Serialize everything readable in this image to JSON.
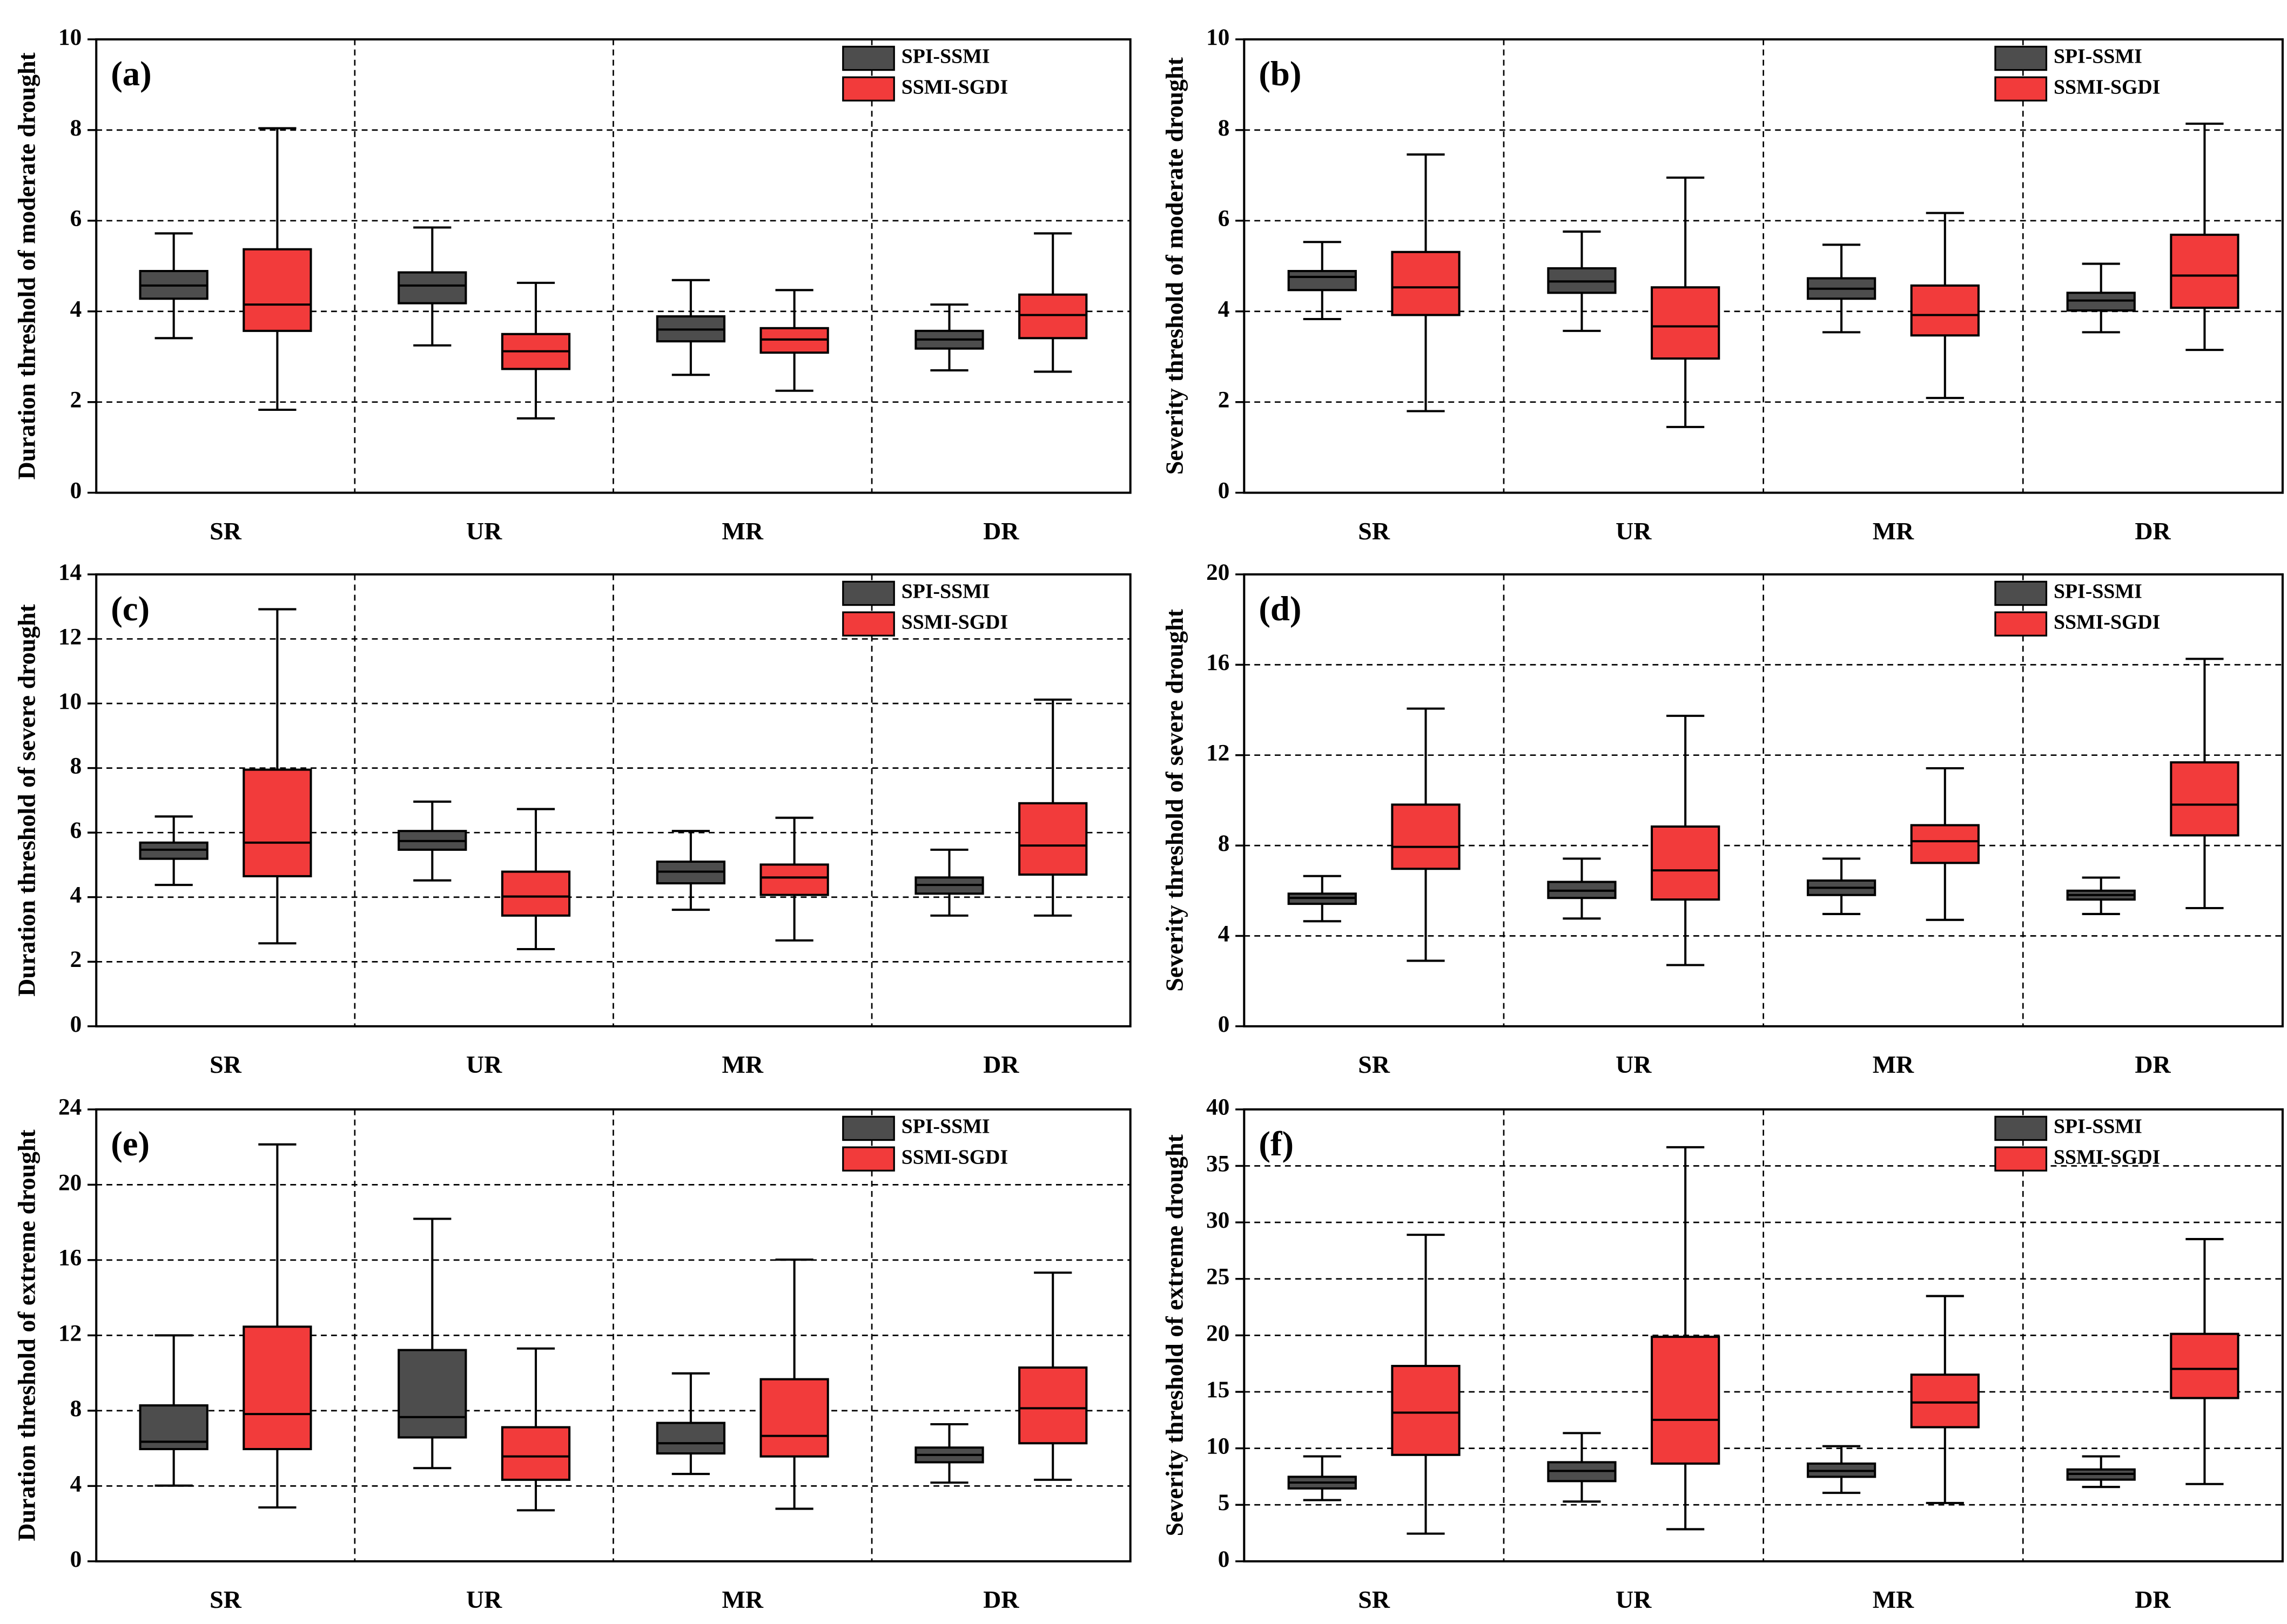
{
  "chart_data": [
    {
      "type": "box",
      "label": "(a)",
      "y_label": "Duration threshold of moderate drought",
      "categories": [
        "SR",
        "UR",
        "MR",
        "DR"
      ],
      "ylim": [
        0,
        10
      ],
      "yticks": [
        0,
        2,
        4,
        6,
        8,
        10
      ],
      "grid": true,
      "series": [
        {
          "name": "SPI-SSMI",
          "color": "#4d4d4d",
          "min": [
            3.41,
            3.25,
            2.6,
            2.7
          ],
          "q1": [
            4.28,
            4.18,
            3.34,
            3.18
          ],
          "median": [
            4.57,
            4.57,
            3.6,
            3.38
          ],
          "q3": [
            4.89,
            4.86,
            3.89,
            3.57
          ],
          "max": [
            5.72,
            5.85,
            4.69,
            4.15
          ]
        },
        {
          "name": "SSMI-SGDI",
          "color": "#f23b3b",
          "min": [
            1.83,
            1.64,
            2.25,
            2.67
          ],
          "q1": [
            3.57,
            2.73,
            3.09,
            3.41
          ],
          "median": [
            4.15,
            3.12,
            3.38,
            3.92
          ],
          "q3": [
            5.37,
            3.5,
            3.63,
            4.37
          ],
          "max": [
            8.04,
            4.63,
            4.47,
            5.72
          ]
        }
      ]
    },
    {
      "type": "box",
      "label": "(b)",
      "y_label": "Severity threshold of moderate drought",
      "categories": [
        "SR",
        "UR",
        "MR",
        "DR"
      ],
      "ylim": [
        0,
        10
      ],
      "yticks": [
        0,
        2,
        4,
        6,
        8,
        10
      ],
      "grid": true,
      "series": [
        {
          "name": "SPI-SSMI",
          "color": "#4d4d4d",
          "min": [
            3.83,
            3.57,
            3.54,
            3.54
          ],
          "q1": [
            4.47,
            4.41,
            4.28,
            4.02
          ],
          "median": [
            4.76,
            4.66,
            4.5,
            4.24
          ],
          "q3": [
            4.89,
            4.95,
            4.73,
            4.41
          ],
          "max": [
            5.53,
            5.76,
            5.47,
            5.05
          ]
        },
        {
          "name": "SSMI-SGDI",
          "color": "#f23b3b",
          "min": [
            1.8,
            1.45,
            2.09,
            3.15
          ],
          "q1": [
            3.92,
            2.96,
            3.47,
            4.08
          ],
          "median": [
            4.53,
            3.67,
            3.92,
            4.79
          ],
          "q3": [
            5.31,
            4.53,
            4.57,
            5.69
          ],
          "max": [
            7.46,
            6.95,
            6.17,
            8.14
          ]
        }
      ]
    },
    {
      "type": "box",
      "label": "(c)",
      "y_label": "Duration threshold of severe drought",
      "categories": [
        "SR",
        "UR",
        "MR",
        "DR"
      ],
      "ylim": [
        0,
        14
      ],
      "yticks": [
        0,
        2,
        4,
        6,
        8,
        10,
        12,
        14
      ],
      "grid": true,
      "series": [
        {
          "name": "SPI-SSMI",
          "color": "#4d4d4d",
          "min": [
            4.38,
            4.52,
            3.61,
            3.43
          ],
          "q1": [
            5.19,
            5.47,
            4.43,
            4.11
          ],
          "median": [
            5.47,
            5.74,
            4.79,
            4.38
          ],
          "q3": [
            5.69,
            6.05,
            5.1,
            4.61
          ],
          "max": [
            6.5,
            6.96,
            6.05,
            5.47
          ]
        },
        {
          "name": "SSMI-SGDI",
          "color": "#f23b3b",
          "min": [
            2.57,
            2.39,
            2.66,
            3.43
          ],
          "q1": [
            4.65,
            3.43,
            4.07,
            4.7
          ],
          "median": [
            5.69,
            4.02,
            4.61,
            5.6
          ],
          "q3": [
            7.95,
            4.79,
            5.01,
            6.91
          ],
          "max": [
            12.92,
            6.73,
            6.46,
            10.12
          ]
        }
      ]
    },
    {
      "type": "box",
      "label": "(d)",
      "y_label": "Severity threshold of severe drought",
      "categories": [
        "SR",
        "UR",
        "MR",
        "DR"
      ],
      "ylim": [
        0,
        20
      ],
      "yticks": [
        0,
        4,
        8,
        12,
        16,
        20
      ],
      "grid": true,
      "series": [
        {
          "name": "SPI-SSMI",
          "color": "#4d4d4d",
          "min": [
            4.65,
            4.77,
            4.97,
            4.97
          ],
          "q1": [
            5.42,
            5.68,
            5.81,
            5.61
          ],
          "median": [
            5.68,
            6.0,
            6.13,
            5.81
          ],
          "q3": [
            5.87,
            6.39,
            6.45,
            6.0
          ],
          "max": [
            6.65,
            7.42,
            7.42,
            6.58
          ]
        },
        {
          "name": "SSMI-SGDI",
          "color": "#f23b3b",
          "min": [
            2.9,
            2.71,
            4.71,
            5.23
          ],
          "q1": [
            6.97,
            5.61,
            7.23,
            8.45
          ],
          "median": [
            7.94,
            6.9,
            8.19,
            9.81
          ],
          "q3": [
            9.81,
            8.84,
            8.9,
            11.68
          ],
          "max": [
            14.06,
            13.74,
            11.42,
            16.26
          ]
        }
      ]
    },
    {
      "type": "box",
      "label": "(e)",
      "y_label": "Duration threshold of extreme drought",
      "categories": [
        "SR",
        "UR",
        "MR",
        "DR"
      ],
      "ylim": [
        0,
        24
      ],
      "yticks": [
        0,
        4,
        8,
        12,
        16,
        20,
        24
      ],
      "grid": true,
      "series": [
        {
          "name": "SPI-SSMI",
          "color": "#4d4d4d",
          "min": [
            4.02,
            4.95,
            4.64,
            4.18
          ],
          "q1": [
            5.96,
            6.58,
            5.73,
            5.26
          ],
          "median": [
            6.35,
            7.66,
            6.27,
            5.65
          ],
          "q3": [
            8.28,
            11.22,
            7.35,
            6.04
          ],
          "max": [
            12.0,
            18.19,
            9.98,
            7.28
          ]
        },
        {
          "name": "SSMI-SGDI",
          "color": "#f23b3b",
          "min": [
            2.86,
            2.71,
            2.79,
            4.33
          ],
          "q1": [
            5.96,
            4.33,
            5.57,
            6.27
          ],
          "median": [
            7.82,
            5.57,
            6.66,
            8.13
          ],
          "q3": [
            12.46,
            7.12,
            9.67,
            10.29
          ],
          "max": [
            22.14,
            11.3,
            16.02,
            15.33
          ]
        }
      ]
    },
    {
      "type": "box",
      "label": "(f)",
      "y_label": "Severity threshold of extreme drought",
      "categories": [
        "SR",
        "UR",
        "MR",
        "DR"
      ],
      "ylim": [
        0,
        40
      ],
      "yticks": [
        0,
        5,
        10,
        15,
        20,
        25,
        30,
        35,
        40
      ],
      "grid": true,
      "series": [
        {
          "name": "SPI-SSMI",
          "color": "#4d4d4d",
          "min": [
            5.42,
            5.29,
            6.06,
            6.58
          ],
          "q1": [
            6.45,
            7.1,
            7.48,
            7.23
          ],
          "median": [
            6.97,
            8.0,
            8.0,
            7.74
          ],
          "q3": [
            7.48,
            8.77,
            8.65,
            8.13
          ],
          "max": [
            9.29,
            11.35,
            10.19,
            9.29
          ]
        },
        {
          "name": "SSMI-SGDI",
          "color": "#f23b3b",
          "min": [
            2.45,
            2.84,
            5.16,
            6.84
          ],
          "q1": [
            9.42,
            8.65,
            11.87,
            14.45
          ],
          "median": [
            13.16,
            12.52,
            14.06,
            17.03
          ],
          "q3": [
            17.29,
            19.87,
            16.52,
            20.13
          ],
          "max": [
            28.9,
            36.65,
            23.48,
            28.52
          ]
        }
      ]
    }
  ]
}
